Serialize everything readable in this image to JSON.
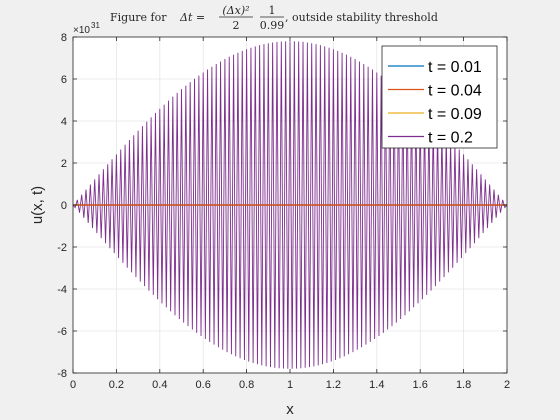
{
  "chart_data": {
    "type": "line",
    "title": {
      "prefix": "Figure for ",
      "math_lhs": "Δt =",
      "frac1_num": "(Δx)²",
      "frac1_den": "2",
      "frac2_num": "1",
      "frac2_den": "0.99",
      "suffix": ", outside stability threshold"
    },
    "xlabel": "x",
    "ylabel": "u(x, t)",
    "xlim": [
      0,
      2
    ],
    "ylim": [
      -8e+31,
      8e+31
    ],
    "y_exponent_label": "×10",
    "y_exponent_power": "31",
    "grid": true,
    "legend_position": "top-right",
    "x_ticks": [
      "0",
      "0.2",
      "0.4",
      "0.6",
      "0.8",
      "1",
      "1.2",
      "1.4",
      "1.6",
      "1.8",
      "2"
    ],
    "y_ticks": [
      "-8",
      "-6",
      "-4",
      "-2",
      "0",
      "2",
      "4",
      "6",
      "8"
    ],
    "series": [
      {
        "name": "t = 0.01",
        "color": "#0072bd",
        "amplitude": 0
      },
      {
        "name": "t = 0.04",
        "color": "#d95319",
        "amplitude": 0
      },
      {
        "name": "t = 0.09",
        "color": "#edb120",
        "amplitude": 0
      },
      {
        "name": "t = 0.2",
        "color": "#7e2f8e",
        "amplitude": 7.8e+31,
        "envelope": "sin(pi*x/2)",
        "oscillation": "alternating sign at each grid point",
        "grid_points": 201
      }
    ]
  }
}
